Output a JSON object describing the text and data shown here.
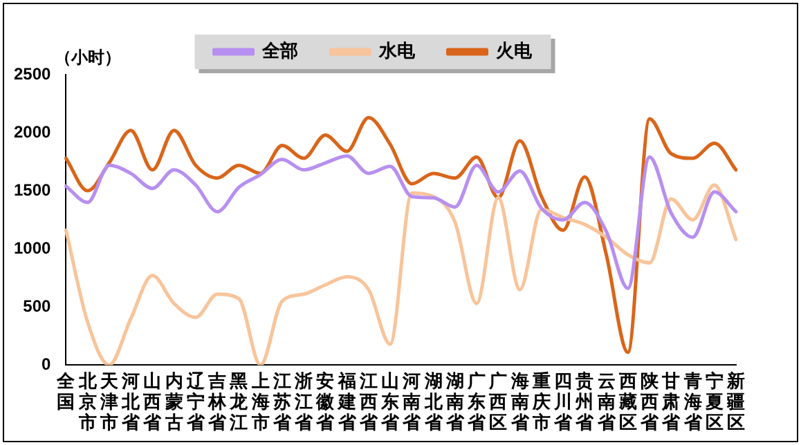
{
  "chart_data": {
    "type": "line",
    "ylabel": "（小时）",
    "categories": [
      "全国",
      "北京市",
      "天津市",
      "河北省",
      "山西省",
      "内蒙古",
      "辽宁省",
      "吉林省",
      "黑龙江",
      "上海市",
      "江苏省",
      "浙江省",
      "安徽省",
      "福建省",
      "江西省",
      "山东省",
      "河南省",
      "湖北省",
      "湖南省",
      "广东省",
      "广西区",
      "海南省",
      "重庆市",
      "四川省",
      "贵州省",
      "云南省",
      "西藏区",
      "陕西省",
      "甘肃省",
      "青海省",
      "宁夏区",
      "新疆区"
    ],
    "series": [
      {
        "name": "全部",
        "color": "#b78ff0",
        "values": [
          1540,
          1400,
          1720,
          1650,
          1520,
          1680,
          1550,
          1320,
          1530,
          1640,
          1770,
          1680,
          1740,
          1800,
          1650,
          1710,
          1450,
          1440,
          1360,
          1720,
          1490,
          1670,
          1350,
          1250,
          1400,
          1150,
          660,
          1790,
          1310,
          1100,
          1490,
          1320
        ]
      },
      {
        "name": "水电",
        "color": "#f8c49a",
        "values": [
          1160,
          370,
          0,
          400,
          770,
          530,
          410,
          610,
          570,
          0,
          550,
          610,
          690,
          760,
          650,
          180,
          1480,
          1450,
          1230,
          530,
          1440,
          650,
          1340,
          1270,
          1210,
          1100,
          950,
          880,
          1430,
          1250,
          1550,
          1080
        ]
      },
      {
        "name": "火电",
        "color": "#d9651a",
        "values": [
          1780,
          1500,
          1740,
          2020,
          1680,
          2020,
          1720,
          1610,
          1720,
          1650,
          1890,
          1780,
          1980,
          1840,
          2130,
          1900,
          1560,
          1650,
          1610,
          1790,
          1440,
          1930,
          1450,
          1160,
          1620,
          950,
          110,
          2120,
          1820,
          1780,
          1910,
          1680
        ]
      }
    ],
    "ylim": [
      0,
      2500
    ],
    "yticks": [
      0,
      500,
      1000,
      1500,
      2000,
      2500
    ],
    "grid": false,
    "legend": "top",
    "marker": "none",
    "line_style": "solid"
  }
}
